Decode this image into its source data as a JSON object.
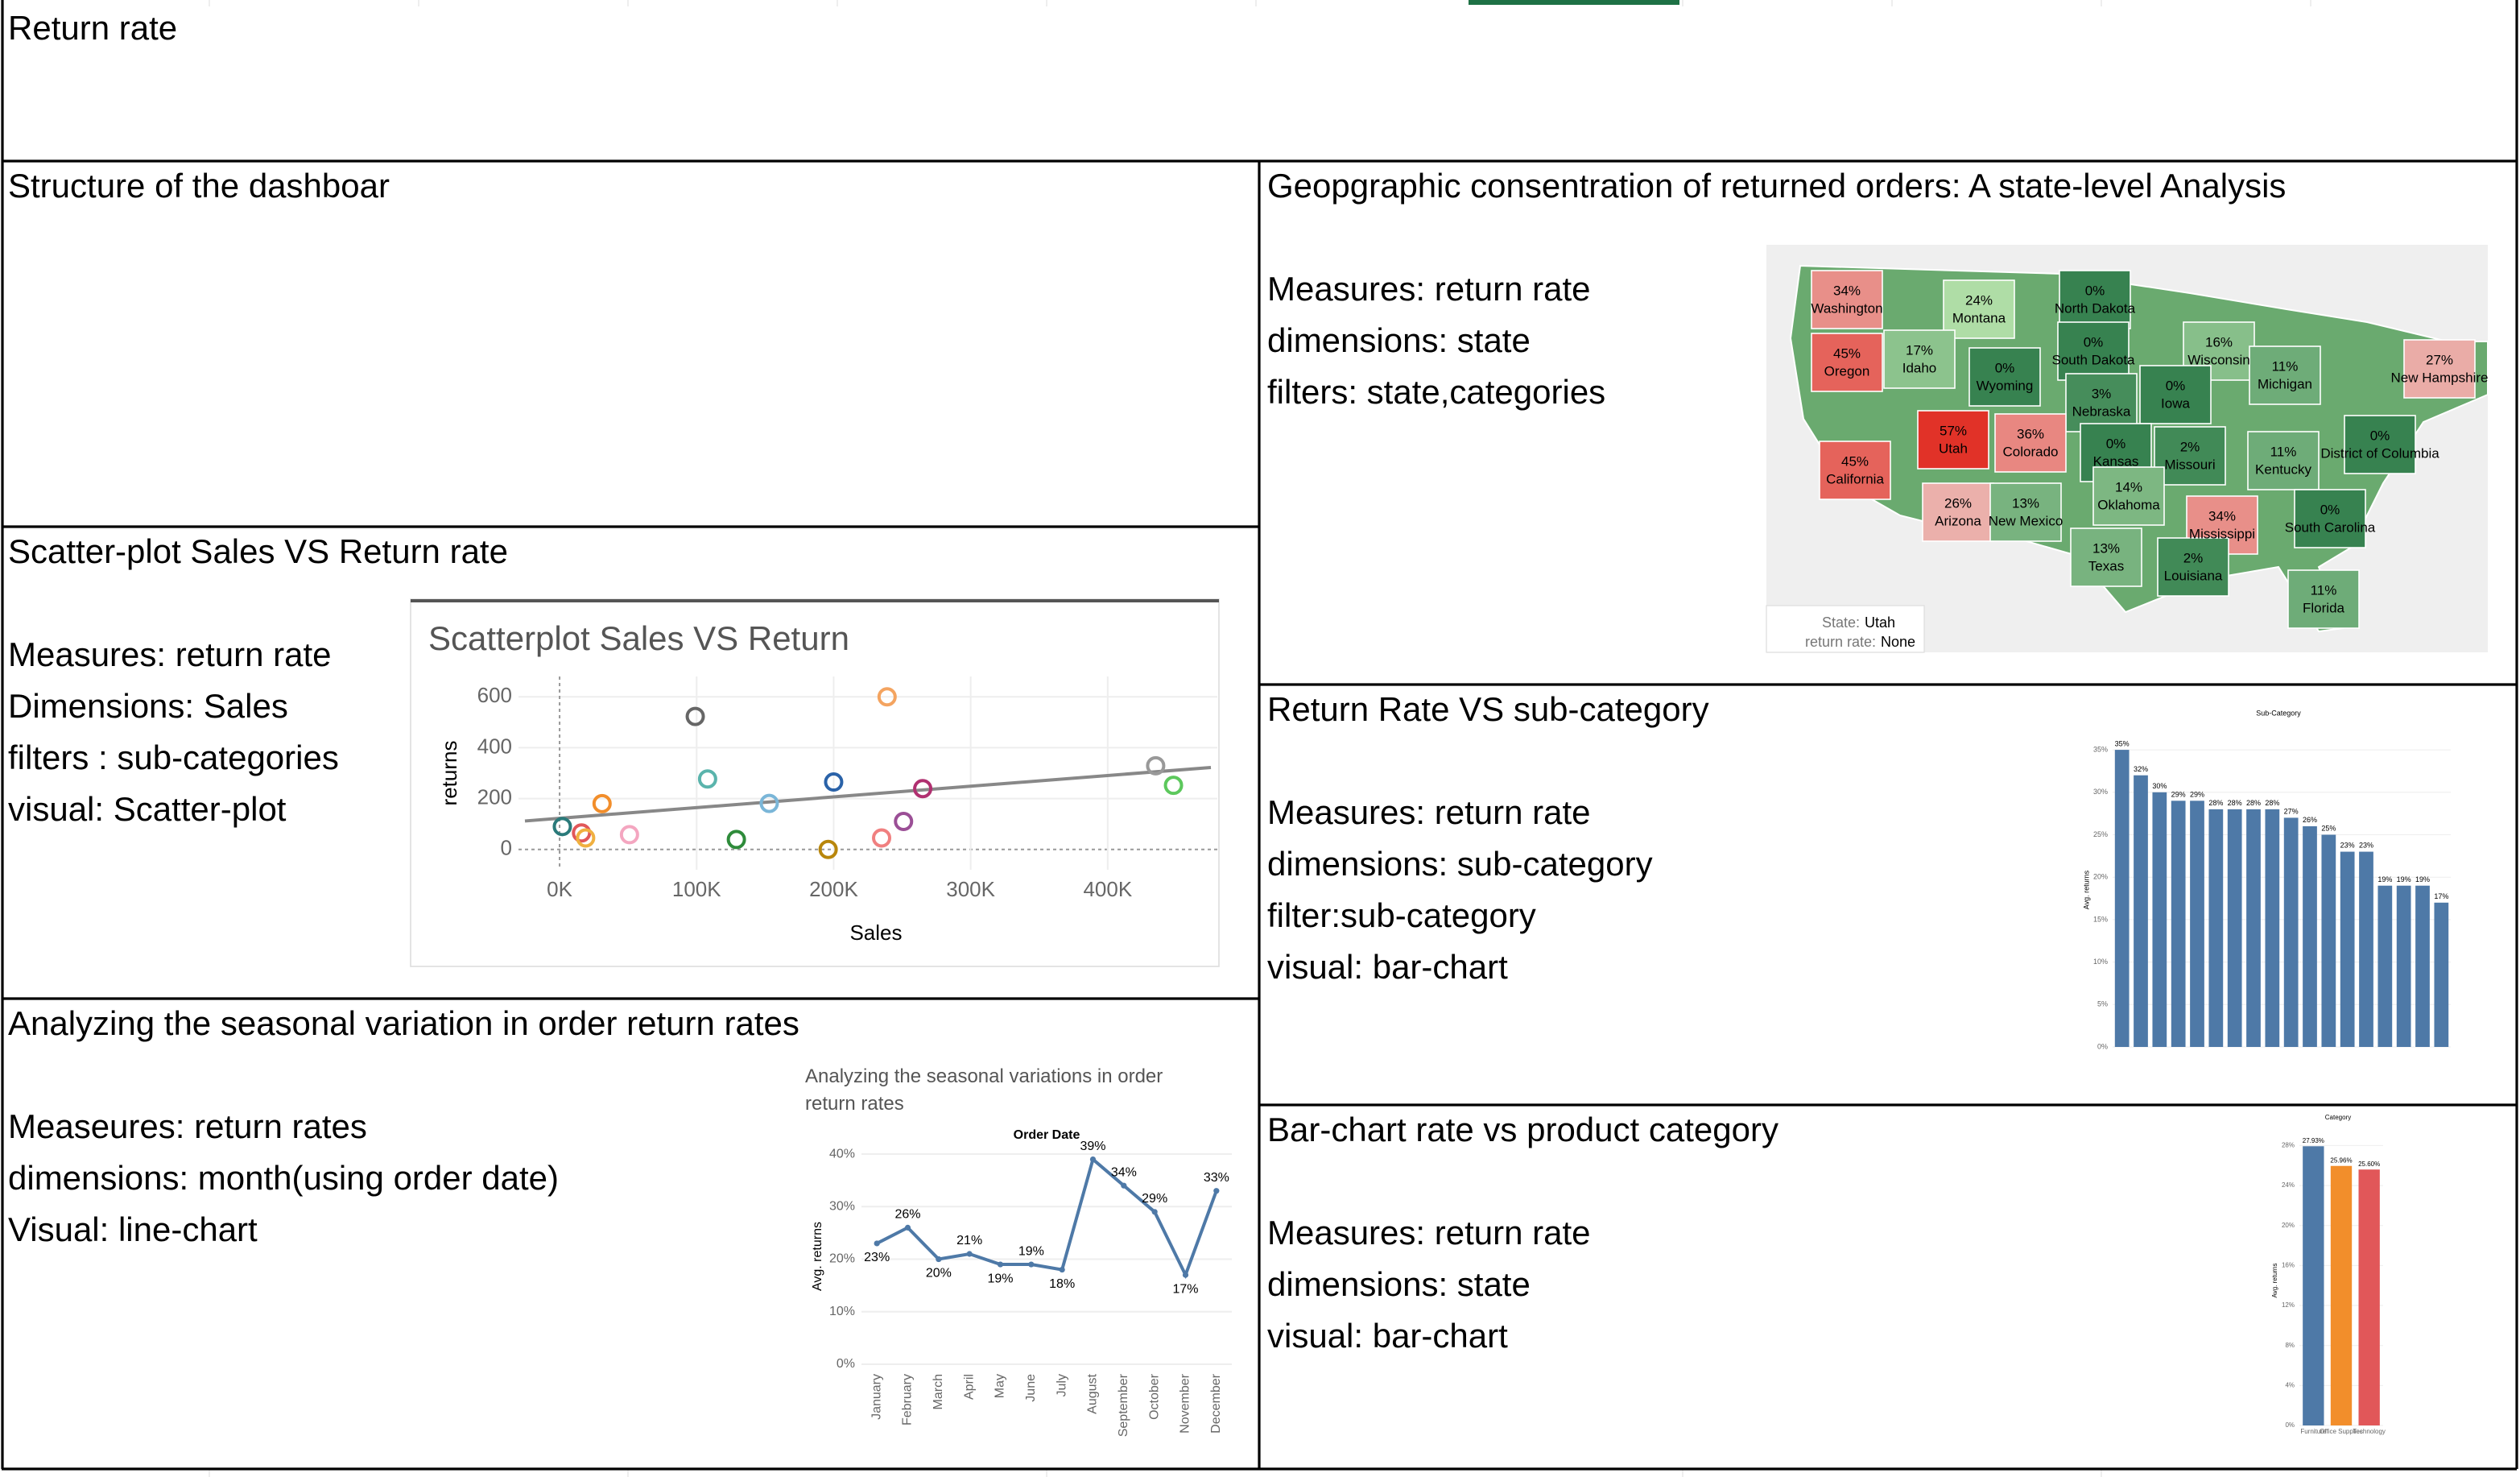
{
  "sheet_title": "Return rate",
  "sections": [
    {
      "title": "Structure of the dashboar",
      "lines": []
    },
    {
      "title": "Scatter-plot Sales VS Return rate",
      "lines": [
        "Measures: return rate",
        "Dimensions: Sales",
        "filters : sub-categories",
        "visual: Scatter-plot"
      ],
      "chart": {
        "type": "scatter",
        "title": "Scatterplot Sales VS Return",
        "x_label": "Sales",
        "y_label": "returns",
        "xlim": [
          -30000,
          480000
        ],
        "ylim": [
          -80,
          680
        ],
        "xticks": [
          {
            "value": 0,
            "label": "0K"
          },
          {
            "value": 100000,
            "label": "100K"
          },
          {
            "value": 200000,
            "label": "200K"
          },
          {
            "value": 300000,
            "label": "300K"
          },
          {
            "value": 400000,
            "label": "400K"
          }
        ],
        "yticks": [
          0,
          200,
          400,
          600
        ],
        "x": [
          2000,
          16000,
          19000,
          31000,
          51000,
          99000,
          108000,
          129000,
          153000,
          196000,
          200000,
          235000,
          239000,
          251000,
          265000,
          435000,
          448000
        ],
        "values": [
          90,
          65,
          45,
          180,
          58,
          523,
          277,
          39,
          181,
          0,
          265,
          45,
          600,
          110,
          239,
          329,
          252
        ],
        "colors": [
          "#2a7a7a",
          "#e15759",
          "#f0b040",
          "#f28e2b",
          "#f4a6c0",
          "#666666",
          "#5ab4ac",
          "#2e8b3a",
          "#7ab6d8",
          "#b8860b",
          "#2a62a8",
          "#f08080",
          "#f4a460",
          "#9b4f96",
          "#b03070",
          "#999999",
          "#5cc85c"
        ]
      }
    },
    {
      "title": "Analyzing the seasonal variation in order return rates",
      "lines": [
        "Measeures: return rates",
        "dimensions: month(using order date)",
        "Visual: line-chart"
      ],
      "chart": {
        "type": "line",
        "title": "Analyzing the seasonal variations in order return rates",
        "x_label": "Order Date",
        "y_label": "Avg. returns",
        "categories": [
          "January",
          "February",
          "March",
          "April",
          "May",
          "June",
          "July",
          "August",
          "September",
          "October",
          "November",
          "December"
        ],
        "values": [
          23,
          26,
          20,
          21,
          19,
          19,
          18,
          39,
          34,
          29,
          17,
          33
        ],
        "value_labels": [
          "23%",
          "26%",
          "20%",
          "21%",
          "19%",
          "19%",
          "18%",
          "39%",
          "34%",
          "29%",
          "17%",
          "33%"
        ],
        "color": "#4e79a7",
        "ylim": [
          0,
          42
        ],
        "yticks": [
          {
            "value": 0,
            "label": "0%"
          },
          {
            "value": 10,
            "label": "10%"
          },
          {
            "value": 20,
            "label": "20%"
          },
          {
            "value": 30,
            "label": "30%"
          },
          {
            "value": 40,
            "label": "40%"
          }
        ]
      }
    },
    {
      "title": "Geopgraphic consentration of returned orders: A state-level Analysis",
      "lines": [
        "Measures: return rate",
        "dimensions: state",
        "filters: state,categories"
      ],
      "map": {
        "states": [
          {
            "name": "Washington",
            "value": 34,
            "label": "34%"
          },
          {
            "name": "Montana",
            "value": 24,
            "label": "24%"
          },
          {
            "name": "North Dakota",
            "value": 0,
            "label": "0%"
          },
          {
            "name": "Oregon",
            "value": 45,
            "label": "45%"
          },
          {
            "name": "Idaho",
            "value": 17,
            "label": "17%"
          },
          {
            "name": "Wyoming",
            "value": 0,
            "label": "0%"
          },
          {
            "name": "South Dakota",
            "value": 0,
            "label": "0%"
          },
          {
            "name": "Wisconsin",
            "value": 16,
            "label": "16%"
          },
          {
            "name": "Michigan",
            "value": 11,
            "label": "11%"
          },
          {
            "name": "New Hampshire",
            "value": 27,
            "label": "27%"
          },
          {
            "name": "Iowa",
            "value": 0,
            "label": "0%"
          },
          {
            "name": "Nebraska",
            "value": 3,
            "label": "3%"
          },
          {
            "name": "Utah",
            "value": 57,
            "label": "57%"
          },
          {
            "name": "Colorado",
            "value": 36,
            "label": "36%"
          },
          {
            "name": "Kansas",
            "value": 0,
            "label": "0%"
          },
          {
            "name": "Missouri",
            "value": 2,
            "label": "2%"
          },
          {
            "name": "California",
            "value": 45,
            "label": "45%"
          },
          {
            "name": "Kentucky",
            "value": 11,
            "label": "11%"
          },
          {
            "name": "District of Columbia",
            "value": 0,
            "label": "0%"
          },
          {
            "name": "Arizona",
            "value": 26,
            "label": "26%"
          },
          {
            "name": "New Mexico",
            "value": 13,
            "label": "13%"
          },
          {
            "name": "Oklahoma",
            "value": 14,
            "label": "14%"
          },
          {
            "name": "Mississippi",
            "value": 34,
            "label": "34%"
          },
          {
            "name": "South Carolina",
            "value": 0,
            "label": "0%"
          },
          {
            "name": "Texas",
            "value": 13,
            "label": "13%"
          },
          {
            "name": "Louisiana",
            "value": 2,
            "label": "2%"
          },
          {
            "name": "Florida",
            "value": 11,
            "label": "11%"
          }
        ],
        "tooltip": {
          "state_key": "State:",
          "state": "Utah",
          "rate_key": "return rate:",
          "rate": "None"
        }
      }
    },
    {
      "title": "Return Rate VS sub-category",
      "lines": [
        "Measures: return rate",
        "dimensions: sub-category",
        "filter:sub-category",
        "visual: bar-chart"
      ],
      "chart": {
        "type": "bar",
        "title": "Sub-Category",
        "y_label": "Avg. returns",
        "color": "#4e79a7",
        "categories": [
          null,
          null,
          null,
          null,
          null,
          null,
          null,
          null,
          null,
          null,
          null,
          null,
          null,
          null,
          null,
          null,
          null,
          null
        ],
        "values": [
          35,
          32,
          30,
          29,
          29,
          28,
          28,
          28,
          28,
          27,
          26,
          25,
          23,
          23,
          19,
          19,
          19,
          17
        ],
        "value_labels": [
          "35%",
          "32%",
          "30%",
          "29%",
          "29%",
          "28%",
          "28%",
          "28%",
          "28%",
          "27%",
          "26%",
          "25%",
          "23%",
          "23%",
          "19%",
          "19%",
          "19%",
          "17%"
        ],
        "ylim": [
          0,
          37
        ],
        "yticks": [
          {
            "value": 0,
            "label": "0%"
          },
          {
            "value": 5,
            "label": "5%"
          },
          {
            "value": 10,
            "label": "10%"
          },
          {
            "value": 15,
            "label": "15%"
          },
          {
            "value": 20,
            "label": "20%"
          },
          {
            "value": 25,
            "label": "25%"
          },
          {
            "value": 30,
            "label": "30%"
          },
          {
            "value": 35,
            "label": "35%"
          }
        ]
      }
    },
    {
      "title": "Bar-chart rate vs product category",
      "lines": [
        "Measures: return rate",
        "dimensions: state",
        "visual: bar-chart"
      ],
      "chart": {
        "type": "bar",
        "title": "Category",
        "y_label": "Avg. returns",
        "categories": [
          "Furniture",
          "Office Supplies",
          "Technology"
        ],
        "values": [
          27.93,
          25.96,
          25.6
        ],
        "value_labels": [
          "27.93%",
          "25.96%",
          "25.60%"
        ],
        "colors": [
          "#4e79a7",
          "#f28e2b",
          "#e15759"
        ],
        "ylim": [
          0,
          29
        ],
        "yticks": [
          {
            "value": 0,
            "label": "0%"
          },
          {
            "value": 4,
            "label": "4%"
          },
          {
            "value": 8,
            "label": "8%"
          },
          {
            "value": 12,
            "label": "12%"
          },
          {
            "value": 16,
            "label": "16%"
          },
          {
            "value": 20,
            "label": "20%"
          },
          {
            "value": 24,
            "label": "24%"
          },
          {
            "value": 28,
            "label": "28%"
          }
        ]
      }
    }
  ]
}
